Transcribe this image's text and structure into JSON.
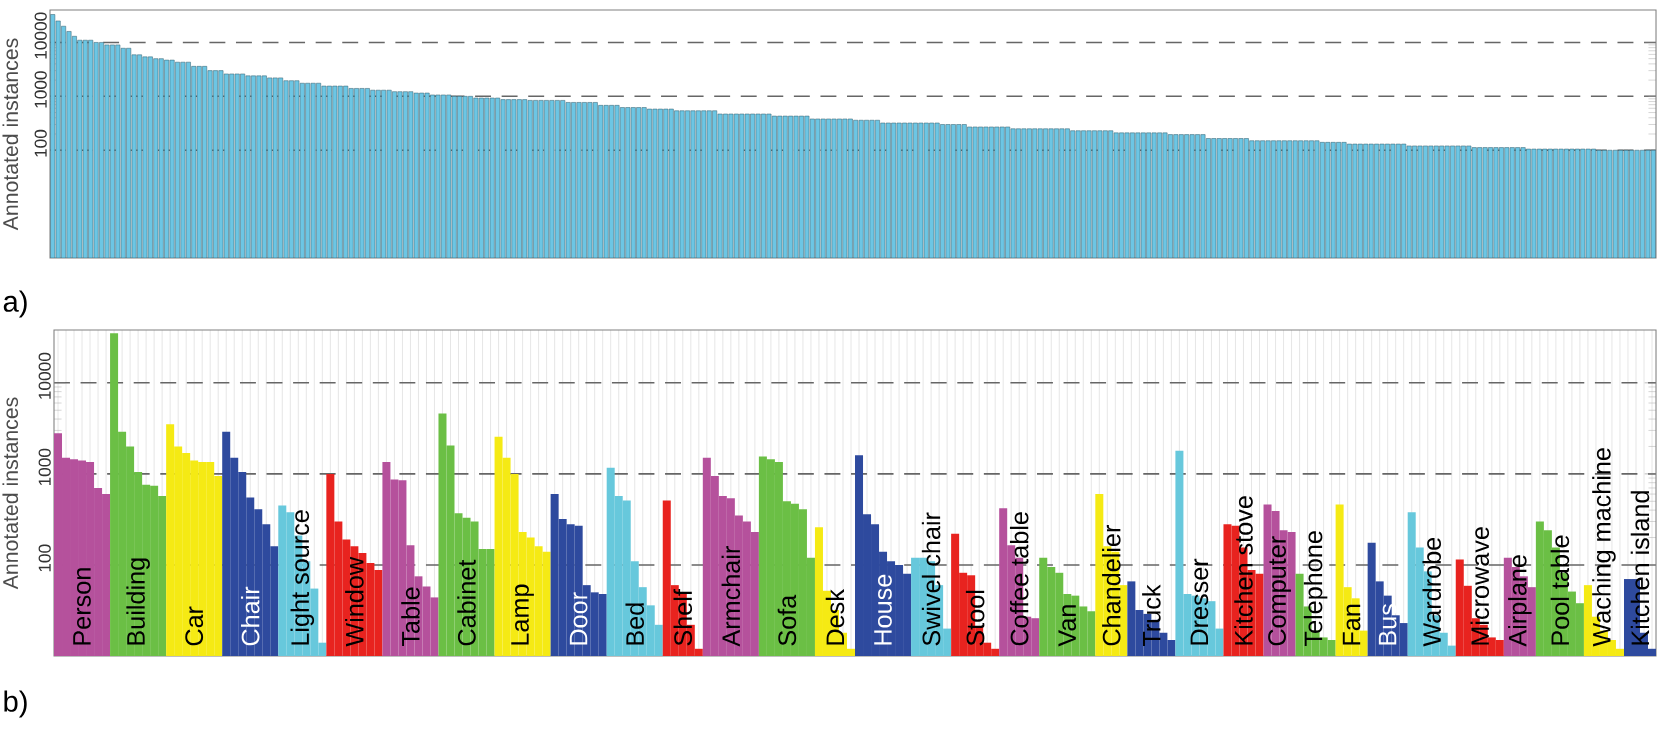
{
  "chart_data": [
    {
      "type": "bar",
      "title": "a)",
      "ylabel": "Annotated instances",
      "log": "y",
      "ylim": [
        1,
        40000
      ],
      "yticks": [
        100,
        1000,
        10000
      ],
      "grid": "y",
      "color": "#6cc6e4",
      "categories": [
        null,
        null,
        null,
        null,
        null,
        null,
        null,
        null,
        null,
        null,
        null,
        null,
        null,
        null,
        null,
        null,
        null,
        null,
        null,
        null,
        null,
        null,
        null,
        null,
        null,
        null,
        null,
        null,
        null,
        null,
        null,
        null,
        null,
        null,
        null,
        null,
        null,
        null,
        null,
        null,
        null,
        null,
        null,
        null,
        null,
        null,
        null,
        null,
        null,
        null,
        null,
        null,
        null,
        null,
        null,
        null,
        null,
        null,
        null,
        null,
        null,
        null,
        null,
        null,
        null,
        null,
        null,
        null,
        null,
        null,
        null,
        null,
        null,
        null,
        null,
        null,
        null,
        null,
        null,
        null,
        null,
        null,
        null,
        null,
        null,
        null,
        null,
        null,
        null,
        null,
        null,
        null,
        null,
        null,
        null,
        null,
        null,
        null,
        null,
        null,
        null,
        null,
        null,
        null,
        null,
        null,
        null,
        null,
        null,
        null,
        null,
        null,
        null,
        null,
        null,
        null,
        null,
        null,
        null,
        null,
        null,
        null,
        null,
        null,
        null,
        null,
        null,
        null,
        null,
        null,
        null,
        null,
        null,
        null,
        null,
        null,
        null,
        null,
        null,
        null,
        null,
        null,
        null,
        null,
        null,
        null,
        null,
        null,
        null,
        null,
        null,
        null,
        null,
        null,
        null,
        null,
        null,
        null,
        null,
        null,
        null,
        null,
        null,
        null,
        null,
        null,
        null,
        null,
        null,
        null,
        null,
        null,
        null,
        null,
        null,
        null,
        null,
        null,
        null,
        null,
        null,
        null,
        null,
        null,
        null,
        null,
        null,
        null,
        null,
        null,
        null,
        null,
        null,
        null,
        null,
        null,
        null,
        null,
        null,
        null,
        null,
        null,
        null,
        null,
        null,
        null,
        null,
        null,
        null,
        null,
        null,
        null,
        null,
        null,
        null,
        null,
        null,
        null,
        null,
        null,
        null,
        null,
        null,
        null,
        null,
        null,
        null,
        null,
        null,
        null,
        null,
        null,
        null,
        null,
        null,
        null,
        null,
        null,
        null,
        null,
        null,
        null,
        null,
        null,
        null,
        null,
        null,
        null,
        null,
        null,
        null,
        null,
        null,
        null,
        null,
        null,
        null,
        null,
        null,
        null,
        null,
        null,
        null,
        null,
        null,
        null,
        null,
        null,
        null,
        null,
        null,
        null,
        null,
        null,
        null,
        null,
        null,
        null,
        null,
        null,
        null,
        null,
        null,
        null,
        null,
        null,
        null,
        null,
        null,
        null,
        null,
        null,
        null,
        null,
        null,
        null
      ],
      "values": [
        33000,
        25000,
        20000,
        16000,
        13000,
        11000,
        11000,
        11000,
        10000,
        10000,
        9000,
        9000,
        9000,
        7800,
        7800,
        5900,
        5900,
        5400,
        5400,
        5000,
        5000,
        4700,
        4700,
        4300,
        4300,
        4300,
        3600,
        3600,
        3600,
        3000,
        3000,
        3000,
        2600,
        2600,
        2600,
        2600,
        2400,
        2400,
        2400,
        2400,
        2200,
        2200,
        2200,
        1950,
        1950,
        1950,
        1750,
        1750,
        1750,
        1750,
        1550,
        1550,
        1550,
        1550,
        1550,
        1400,
        1400,
        1400,
        1400,
        1300,
        1300,
        1300,
        1300,
        1220,
        1220,
        1220,
        1220,
        1150,
        1150,
        1150,
        1060,
        1060,
        1060,
        1060,
        1000,
        1000,
        1000,
        1000,
        930,
        930,
        930,
        930,
        930,
        870,
        870,
        870,
        870,
        870,
        840,
        840,
        840,
        840,
        840,
        840,
        840,
        770,
        770,
        770,
        770,
        770,
        770,
        680,
        680,
        680,
        680,
        620,
        620,
        620,
        620,
        620,
        580,
        580,
        580,
        580,
        580,
        540,
        540,
        540,
        540,
        540,
        540,
        540,
        540,
        470,
        470,
        470,
        470,
        470,
        470,
        470,
        470,
        470,
        470,
        430,
        430,
        430,
        430,
        430,
        430,
        430,
        380,
        380,
        380,
        380,
        380,
        380,
        380,
        380,
        360,
        360,
        360,
        360,
        360,
        320,
        320,
        320,
        320,
        320,
        320,
        320,
        320,
        320,
        320,
        320,
        300,
        300,
        300,
        300,
        300,
        270,
        270,
        270,
        270,
        270,
        270,
        270,
        270,
        250,
        250,
        250,
        250,
        250,
        250,
        250,
        250,
        250,
        250,
        250,
        230,
        230,
        230,
        230,
        230,
        230,
        230,
        230,
        210,
        210,
        210,
        210,
        210,
        210,
        210,
        210,
        210,
        210,
        195,
        195,
        195,
        195,
        195,
        195,
        195,
        165,
        165,
        165,
        165,
        165,
        165,
        165,
        165,
        150,
        150,
        150,
        150,
        150,
        150,
        150,
        150,
        150,
        150,
        150,
        150,
        150,
        140,
        140,
        140,
        140,
        140,
        130,
        130,
        130,
        130,
        130,
        130,
        130,
        130,
        130,
        130,
        130,
        120,
        120,
        120,
        120,
        120,
        120,
        120,
        120,
        120,
        120,
        120,
        120,
        112,
        112,
        112,
        112,
        112,
        112,
        112,
        112,
        112,
        112,
        105,
        105,
        105,
        105,
        105,
        105,
        105,
        105,
        105,
        105,
        105,
        105,
        105,
        100,
        100,
        100,
        100,
        100,
        100,
        100,
        100,
        100,
        100,
        100
      ]
    },
    {
      "type": "bar",
      "title": "b)",
      "ylabel": "Annotated instances",
      "log": "y",
      "ylim": [
        10,
        38000
      ],
      "yticks": [
        100,
        1000,
        10000
      ],
      "grid": true,
      "categories": [
        null,
        null,
        null,
        null,
        null,
        null,
        null,
        null,
        null,
        null,
        null,
        null,
        null,
        null,
        null,
        null,
        null,
        null,
        null,
        null,
        null,
        null,
        null,
        null,
        null,
        null,
        null,
        null,
        null,
        null,
        null,
        null,
        null,
        null,
        null,
        null,
        null,
        null,
        null,
        null,
        null,
        null,
        null,
        null,
        null,
        null,
        null,
        null,
        null,
        null,
        null,
        null,
        null,
        null,
        null,
        null,
        null,
        null,
        null,
        null,
        null,
        null,
        null,
        null,
        null,
        null,
        null,
        null,
        null,
        null,
        null,
        null,
        null,
        null,
        null,
        null,
        null,
        null,
        null,
        null,
        null,
        null,
        null,
        null,
        null,
        null,
        null,
        null,
        null,
        null,
        null,
        null,
        null,
        null,
        null,
        null,
        null,
        null,
        null,
        null,
        null,
        null,
        null,
        null,
        null,
        null,
        null,
        null,
        null,
        null,
        null,
        null,
        null,
        null,
        null,
        null,
        null,
        null,
        null,
        null,
        null,
        null,
        null,
        null,
        null,
        null,
        null,
        null,
        null,
        null,
        null,
        null,
        null,
        null,
        null,
        null,
        null,
        null,
        null,
        null,
        null,
        null,
        null,
        null,
        null,
        null,
        null,
        null,
        null,
        null,
        null,
        null,
        null,
        null,
        null,
        null,
        null,
        null,
        null,
        null,
        null,
        null,
        null,
        null,
        null,
        null,
        null,
        null,
        null,
        null,
        null,
        null,
        null,
        null,
        null,
        null,
        null,
        null,
        null,
        null,
        null,
        null,
        null,
        null,
        null,
        null,
        null,
        null,
        null,
        null,
        null,
        null,
        null,
        null,
        null,
        null,
        null,
        null,
        null,
        null
      ],
      "values": [
        2800,
        1500,
        1450,
        1400,
        1350,
        700,
        600,
        35000,
        2900,
        2000,
        1050,
        760,
        740,
        570,
        3500,
        2000,
        1700,
        1400,
        1350,
        1350,
        950,
        2900,
        1500,
        1050,
        550,
        410,
        280,
        160,
        450,
        380,
        210,
        110,
        55,
        14,
        1000,
        300,
        190,
        160,
        135,
        105,
        88,
        1350,
        870,
        850,
        165,
        75,
        58,
        44,
        4600,
        2050,
        370,
        330,
        300,
        150,
        150,
        2550,
        1500,
        1000,
        230,
        200,
        160,
        140,
        600,
        320,
        280,
        270,
        60,
        50,
        48,
        1170,
        570,
        510,
        110,
        57,
        36,
        22,
        510,
        60,
        50,
        22,
        12,
        1500,
        950,
        570,
        540,
        350,
        300,
        230,
        1550,
        1450,
        1350,
        500,
        470,
        410,
        120,
        260,
        52,
        32,
        18,
        12,
        1600,
        360,
        280,
        140,
        110,
        100,
        80,
        120,
        120,
        110,
        60,
        20,
        220,
        82,
        77,
        21,
        14,
        12,
        420,
        165,
        120,
        27,
        26,
        120,
        95,
        82,
        48,
        46,
        35,
        31,
        600,
        160,
        140,
        60,
        66,
        32,
        29,
        25,
        18,
        15,
        1800,
        48,
        46,
        43,
        40,
        20,
        280,
        270,
        155,
        88,
        80,
        460,
        390,
        240,
        230,
        80,
        35,
        19,
        16,
        15,
        460,
        57,
        43,
        19,
        175,
        66,
        46,
        28,
        23,
        380,
        155,
        85,
        28,
        18,
        13,
        115,
        59,
        26,
        22,
        16,
        15,
        120,
        95,
        75,
        57,
        300,
        240,
        155,
        82,
        51,
        38,
        60,
        27,
        19,
        15,
        12,
        70,
        70,
        18,
        12
      ],
      "colors": [
        "#b5519c",
        "#b5519c",
        "#b5519c",
        "#b5519c",
        "#b5519c",
        "#b5519c",
        "#b5519c",
        "#6bbf45",
        "#6bbf45",
        "#6bbf45",
        "#6bbf45",
        "#6bbf45",
        "#6bbf45",
        "#6bbf45",
        "#f5ea14",
        "#f5ea14",
        "#f5ea14",
        "#f5ea14",
        "#f5ea14",
        "#f5ea14",
        "#f5ea14",
        "#2e4a9e",
        "#2e4a9e",
        "#2e4a9e",
        "#2e4a9e",
        "#2e4a9e",
        "#2e4a9e",
        "#2e4a9e",
        "#67c8dc",
        "#67c8dc",
        "#67c8dc",
        "#67c8dc",
        "#67c8dc",
        "#67c8dc",
        "#e8231f",
        "#e8231f",
        "#e8231f",
        "#e8231f",
        "#e8231f",
        "#e8231f",
        "#e8231f",
        "#b5519c",
        "#b5519c",
        "#b5519c",
        "#b5519c",
        "#b5519c",
        "#b5519c",
        "#b5519c",
        "#6bbf45",
        "#6bbf45",
        "#6bbf45",
        "#6bbf45",
        "#6bbf45",
        "#6bbf45",
        "#6bbf45",
        "#f5ea14",
        "#f5ea14",
        "#f5ea14",
        "#f5ea14",
        "#f5ea14",
        "#f5ea14",
        "#f5ea14",
        "#2e4a9e",
        "#2e4a9e",
        "#2e4a9e",
        "#2e4a9e",
        "#2e4a9e",
        "#2e4a9e",
        "#2e4a9e",
        "#67c8dc",
        "#67c8dc",
        "#67c8dc",
        "#67c8dc",
        "#67c8dc",
        "#67c8dc",
        "#67c8dc",
        "#e8231f",
        "#e8231f",
        "#e8231f",
        "#e8231f",
        "#e8231f",
        "#b5519c",
        "#b5519c",
        "#b5519c",
        "#b5519c",
        "#b5519c",
        "#b5519c",
        "#b5519c",
        "#6bbf45",
        "#6bbf45",
        "#6bbf45",
        "#6bbf45",
        "#6bbf45",
        "#6bbf45",
        "#6bbf45",
        "#f5ea14",
        "#f5ea14",
        "#f5ea14",
        "#f5ea14",
        "#f5ea14",
        "#2e4a9e",
        "#2e4a9e",
        "#2e4a9e",
        "#2e4a9e",
        "#2e4a9e",
        "#2e4a9e",
        "#2e4a9e",
        "#67c8dc",
        "#67c8dc",
        "#67c8dc",
        "#67c8dc",
        "#67c8dc",
        "#e8231f",
        "#e8231f",
        "#e8231f",
        "#e8231f",
        "#e8231f",
        "#e8231f",
        "#b5519c",
        "#b5519c",
        "#b5519c",
        "#b5519c",
        "#b5519c",
        "#6bbf45",
        "#6bbf45",
        "#6bbf45",
        "#6bbf45",
        "#6bbf45",
        "#6bbf45",
        "#6bbf45",
        "#f5ea14",
        "#f5ea14",
        "#f5ea14",
        "#f5ea14",
        "#2e4a9e",
        "#2e4a9e",
        "#2e4a9e",
        "#2e4a9e",
        "#2e4a9e",
        "#2e4a9e",
        "#67c8dc",
        "#67c8dc",
        "#67c8dc",
        "#67c8dc",
        "#67c8dc",
        "#67c8dc",
        "#e8231f",
        "#e8231f",
        "#e8231f",
        "#e8231f",
        "#e8231f",
        "#b5519c",
        "#b5519c",
        "#b5519c",
        "#b5519c",
        "#6bbf45",
        "#6bbf45",
        "#6bbf45",
        "#6bbf45",
        "#6bbf45",
        "#f5ea14",
        "#f5ea14",
        "#f5ea14",
        "#f5ea14",
        "#2e4a9e",
        "#2e4a9e",
        "#2e4a9e",
        "#2e4a9e",
        "#2e4a9e",
        "#67c8dc",
        "#67c8dc",
        "#67c8dc",
        "#67c8dc",
        "#67c8dc",
        "#67c8dc",
        "#e8231f",
        "#e8231f",
        "#e8231f",
        "#e8231f",
        "#e8231f",
        "#e8231f",
        "#b5519c",
        "#b5519c",
        "#b5519c",
        "#b5519c",
        "#6bbf45",
        "#6bbf45",
        "#6bbf45",
        "#6bbf45",
        "#6bbf45",
        "#6bbf45",
        "#f5ea14",
        "#f5ea14",
        "#f5ea14",
        "#f5ea14",
        "#f5ea14",
        "#2e4a9e",
        "#2e4a9e",
        "#2e4a9e",
        "#2e4a9e"
      ],
      "annotations": [
        "Person",
        "Building",
        "Car",
        "Chair",
        "Light source",
        "Window",
        "Table",
        "Cabinet",
        "Lamp",
        "Door",
        "Bed",
        "Shelf",
        "Armchair",
        "Sofa",
        "Desk",
        "House",
        "Swivel chair",
        "Stool",
        "Coffee table",
        "Van",
        "Chandelier",
        "Truck",
        "Dresser",
        "Kitchen stove",
        "Computer",
        "Telephone",
        "Fan",
        "Bus",
        "Wardrobe",
        "Microwave",
        "Airplane",
        "Pool table",
        "Waching machine",
        "Kitchen island"
      ]
    }
  ]
}
